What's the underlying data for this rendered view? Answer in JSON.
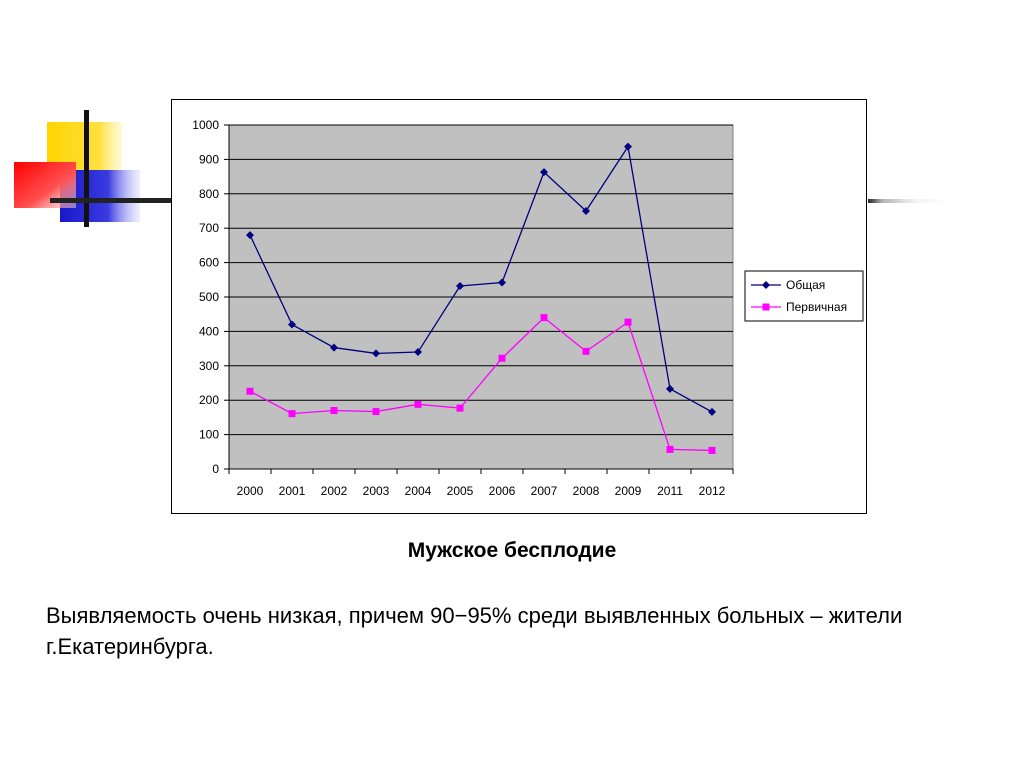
{
  "colors": {
    "plot_background": "#c0c0c0",
    "series_total": "#000080",
    "series_primary": "#ff00ff",
    "accent_yellow": "#ffd400",
    "accent_red": "#ff2020",
    "accent_blue": "#2323d0"
  },
  "chart_data": {
    "type": "line",
    "x": [
      "2000",
      "2001",
      "2002",
      "2003",
      "2004",
      "2005",
      "2006",
      "2007",
      "2008",
      "2009",
      "2011",
      "2012"
    ],
    "series": [
      {
        "name": "Общая",
        "values": [
          680,
          420,
          353,
          336,
          340,
          532,
          542,
          863,
          750,
          937,
          233,
          166
        ]
      },
      {
        "name": "Первичная",
        "values": [
          226,
          161,
          170,
          167,
          188,
          177,
          322,
          440,
          342,
          427,
          57,
          54
        ]
      }
    ],
    "ylim": [
      0,
      1000
    ],
    "yticks": [
      0,
      100,
      200,
      300,
      400,
      500,
      600,
      700,
      800,
      900,
      1000
    ],
    "grid": true,
    "legend": "right"
  },
  "caption": "Мужское бесплодие",
  "note": "Выявляемость очень низкая, причем 90−95% среди выявленных больных – жители  г.Екатеринбурга."
}
